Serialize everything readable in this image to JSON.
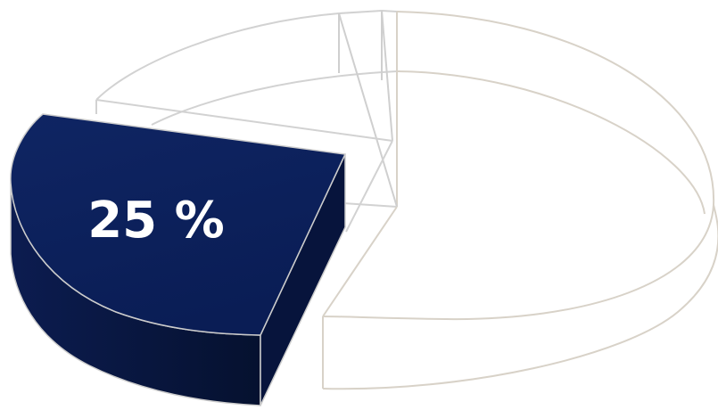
{
  "chart_data": {
    "type": "pie",
    "style": "3d-exploded",
    "slices": [
      {
        "value": 25,
        "label": "25 %",
        "highlighted": true,
        "color": "#0d2158"
      },
      {
        "value": 75,
        "label": "",
        "highlighted": false,
        "color": "#ffffff"
      }
    ]
  },
  "colors": {
    "highlight_top": "#0d2158",
    "highlight_side": "#081642",
    "outline_ghost": "#d8d2c8",
    "outline_inner": "#c9c4bc",
    "background": "#ffffff"
  }
}
